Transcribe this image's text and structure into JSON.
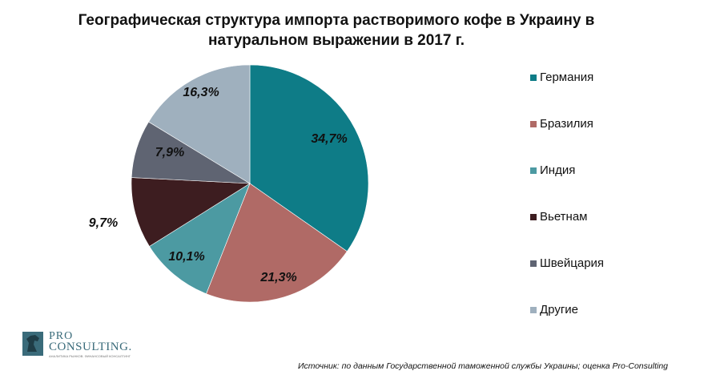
{
  "title_line1": "Географическая структура импорта растворимого кофе в Украину в",
  "title_line2": "натуральном выражении в 2017 г.",
  "chart_data": {
    "type": "pie",
    "title": "Географическая структура импорта растворимого кофе в Украину в натуральном выражении в 2017 г.",
    "slices": [
      {
        "label": "Германия",
        "value": 34.7,
        "display": "34,7%",
        "color": "#0E7C87"
      },
      {
        "label": "Бразилия",
        "value": 21.3,
        "display": "21,3%",
        "color": "#B06A66"
      },
      {
        "label": "Индия",
        "value": 10.1,
        "display": "10,1%",
        "color": "#4C9AA2"
      },
      {
        "label": "Вьетнам",
        "value": 9.7,
        "display": "9,7%",
        "color": "#3D1D20"
      },
      {
        "label": "Швейцария",
        "value": 7.9,
        "display": "7,9%",
        "color": "#5F6472"
      },
      {
        "label": "Другие",
        "value": 16.3,
        "display": "16,3%",
        "color": "#9FB0BE"
      }
    ],
    "legend_position": "right"
  },
  "logo": {
    "line1": "PRO",
    "line2": "CONSULTING.",
    "tagline": "АНАЛИТИКА РЫНКОВ. ФИНАНСОВЫЙ КОНСАЛТИНГ"
  },
  "source_text": "Источник: по данным Государственной таможенной службы Украины; оценка Pro-Consulting"
}
